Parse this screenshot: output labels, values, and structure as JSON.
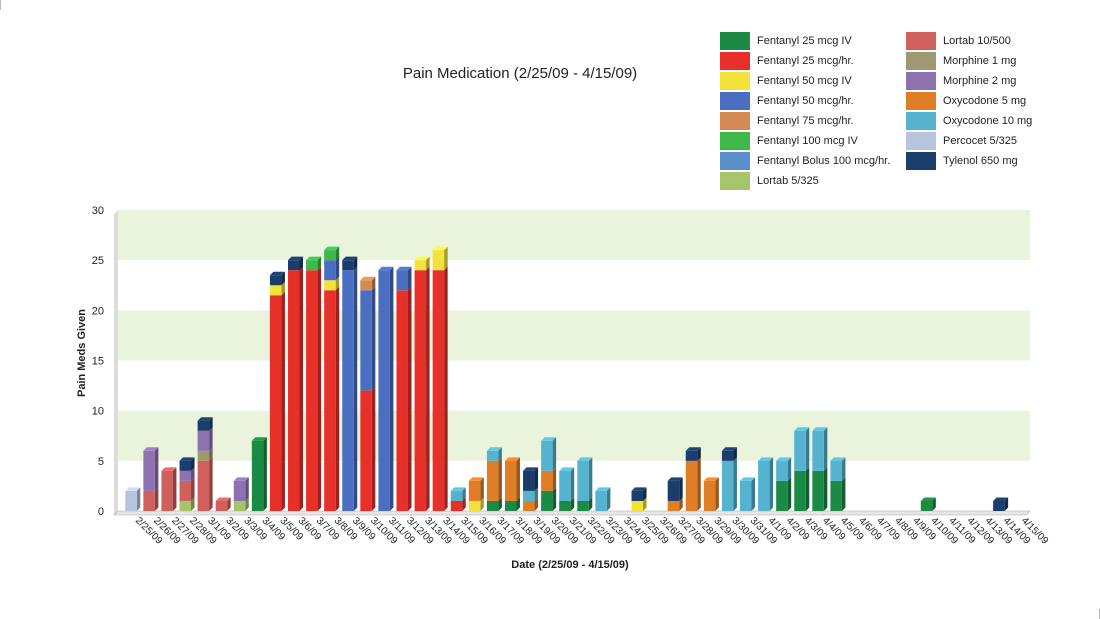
{
  "chart_data": {
    "type": "bar",
    "stacked": true,
    "title": "Pain Medication (2/25/09 - 4/15/09)",
    "xlabel": "Date (2/25/09 - 4/15/09)",
    "ylabel": "Pain Meds Given",
    "ylim": [
      0,
      30
    ],
    "yticks": [
      0,
      5,
      10,
      15,
      20,
      25,
      30
    ],
    "grid": "alternating bands",
    "legend_position": "top-right",
    "categories": [
      "2/25/09",
      "2/26/09",
      "2/27/09",
      "2/28/09",
      "3/1/09",
      "3/2/09",
      "3/3/09",
      "3/4/09",
      "3/5/09",
      "3/6/09",
      "3/7/09",
      "3/8/09",
      "3/9/09",
      "3/10/09",
      "3/11/09",
      "3/12/09",
      "3/13/09",
      "3/14/09",
      "3/15/09",
      "3/16/09",
      "3/17/09",
      "3/18/09",
      "3/19/09",
      "3/20/09",
      "3/21/09",
      "3/22/09",
      "3/23/09",
      "3/24/09",
      "3/25/09",
      "3/26/09",
      "3/27/09",
      "3/28/09",
      "3/29/09",
      "3/30/09",
      "3/31/09",
      "4/1/09",
      "4/2/09",
      "4/3/09",
      "4/4/09",
      "4/5/09",
      "4/6/09",
      "4/7/09",
      "4/8/09",
      "4/9/09",
      "4/10/09",
      "4/11/09",
      "4/12/09",
      "4/13/09",
      "4/14/09",
      "4/15/09"
    ],
    "series": [
      {
        "name": "Fentanyl 25 mcg IV",
        "color": "#1a8a45",
        "values": [
          0,
          0,
          0,
          0,
          0,
          0,
          0,
          7,
          0,
          0,
          0,
          0,
          0,
          0,
          0,
          0,
          0,
          0,
          0,
          0,
          1,
          1,
          0,
          2,
          1,
          1,
          0,
          0,
          0,
          0,
          0,
          0,
          0,
          0,
          0,
          0,
          3,
          4,
          4,
          3,
          0,
          0,
          0,
          0,
          1,
          0,
          0,
          0,
          0,
          0
        ]
      },
      {
        "name": "Fentanyl 25 mcg/hr.",
        "color": "#e8302a",
        "values": [
          0,
          0,
          0,
          0,
          0,
          0,
          0,
          0,
          21.5,
          24,
          24,
          22,
          0,
          12,
          0,
          22,
          24,
          24,
          1,
          0,
          0,
          0,
          0,
          0,
          0,
          0,
          0,
          0,
          0,
          0,
          0,
          0,
          0,
          0,
          0,
          0,
          0,
          0,
          0,
          0,
          0,
          0,
          0,
          0,
          0,
          0,
          0,
          0,
          0,
          0
        ]
      },
      {
        "name": "Fentanyl 50 mcg IV",
        "color": "#f2e23a",
        "values": [
          0,
          0,
          0,
          0,
          0,
          0,
          0,
          0,
          1,
          0,
          0,
          1,
          0,
          0,
          0,
          0,
          1,
          2,
          0,
          1,
          0,
          0,
          0,
          0,
          0,
          0,
          0,
          0,
          1,
          0,
          0,
          0,
          0,
          0,
          0,
          0,
          0,
          0,
          0,
          0,
          0,
          0,
          0,
          0,
          0,
          0,
          0,
          0,
          0,
          0
        ]
      },
      {
        "name": "Fentanyl 50 mcg/hr.",
        "color": "#4a6fc0",
        "values": [
          0,
          0,
          0,
          0,
          0,
          0,
          0,
          0,
          0,
          0,
          0,
          2,
          24,
          10,
          24,
          2,
          0,
          0,
          0,
          0,
          0,
          0,
          0,
          0,
          0,
          0,
          0,
          0,
          0,
          0,
          0,
          0,
          0,
          0,
          0,
          0,
          0,
          0,
          0,
          0,
          0,
          0,
          0,
          0,
          0,
          0,
          0,
          0,
          0,
          0
        ]
      },
      {
        "name": "Fentanyl 75 mcg/hr.",
        "color": "#d48a52",
        "values": [
          0,
          0,
          0,
          0,
          0,
          0,
          0,
          0,
          0,
          0,
          0,
          0,
          0,
          1,
          0,
          0,
          0,
          0,
          0,
          0,
          0,
          0,
          0,
          0,
          0,
          0,
          0,
          0,
          0,
          0,
          0,
          0,
          0,
          0,
          0,
          0,
          0,
          0,
          0,
          0,
          0,
          0,
          0,
          0,
          0,
          0,
          0,
          0,
          0,
          0
        ]
      },
      {
        "name": "Fentanyl 100 mcg IV",
        "color": "#3fb84a",
        "values": [
          0,
          0,
          0,
          0,
          0,
          0,
          0,
          0,
          0,
          0,
          1,
          1,
          0,
          0,
          0,
          0,
          0,
          0,
          0,
          0,
          0,
          0,
          0,
          0,
          0,
          0,
          0,
          0,
          0,
          0,
          0,
          0,
          0,
          0,
          0,
          0,
          0,
          0,
          0,
          0,
          0,
          0,
          0,
          0,
          0,
          0,
          0,
          0,
          0,
          0
        ]
      },
      {
        "name": "Fentanyl Bolus 100 mcg/hr.",
        "color": "#5a8ec8",
        "values": [
          0,
          0,
          0,
          0,
          0,
          0,
          0,
          0,
          0,
          0,
          0,
          0,
          0,
          0,
          0,
          0,
          0,
          0,
          0,
          0,
          0,
          0,
          0,
          0,
          0,
          0,
          0,
          0,
          0,
          0,
          0,
          0,
          0,
          0,
          0,
          0,
          0,
          0,
          0,
          0,
          0,
          0,
          0,
          0,
          0,
          0,
          0,
          0,
          0,
          0
        ]
      },
      {
        "name": "Lortab 5/325",
        "color": "#a8c46a",
        "values": [
          0,
          0,
          0,
          1,
          0,
          0,
          1,
          0,
          0,
          0,
          0,
          0,
          0,
          0,
          0,
          0,
          0,
          0,
          0,
          0,
          0,
          0,
          0,
          0,
          0,
          0,
          0,
          0,
          0,
          0,
          0,
          0,
          0,
          0,
          0,
          0,
          0,
          0,
          0,
          0,
          0,
          0,
          0,
          0,
          0,
          0,
          0,
          0,
          0,
          0
        ]
      },
      {
        "name": "Lortab 10/500",
        "color": "#cf605c",
        "values": [
          0,
          2,
          4,
          2,
          5,
          1,
          0,
          0,
          0,
          0,
          0,
          0,
          0,
          0,
          0,
          0,
          0,
          0,
          0,
          0,
          0,
          0,
          0,
          0,
          0,
          0,
          0,
          0,
          0,
          0,
          0,
          0,
          0,
          0,
          0,
          0,
          0,
          0,
          0,
          0,
          0,
          0,
          0,
          0,
          0,
          0,
          0,
          0,
          0,
          0
        ]
      },
      {
        "name": "Morphine 1 mg",
        "color": "#a09870",
        "values": [
          0,
          0,
          0,
          0,
          1,
          0,
          0,
          0,
          0,
          0,
          0,
          0,
          0,
          0,
          0,
          0,
          0,
          0,
          0,
          0,
          0,
          0,
          0,
          0,
          0,
          0,
          0,
          0,
          0,
          0,
          0,
          0,
          0,
          0,
          0,
          0,
          0,
          0,
          0,
          0,
          0,
          0,
          0,
          0,
          0,
          0,
          0,
          0,
          0,
          0
        ]
      },
      {
        "name": "Morphine 2 mg",
        "color": "#8e72b0",
        "values": [
          0,
          4,
          0,
          1,
          2,
          0,
          2,
          0,
          0,
          0,
          0,
          0,
          0,
          0,
          0,
          0,
          0,
          0,
          0,
          0,
          0,
          0,
          0,
          0,
          0,
          0,
          0,
          0,
          0,
          0,
          0,
          0,
          0,
          0,
          0,
          0,
          0,
          0,
          0,
          0,
          0,
          0,
          0,
          0,
          0,
          0,
          0,
          0,
          0,
          0
        ]
      },
      {
        "name": "Oxycodone 5 mg",
        "color": "#e07e28",
        "values": [
          0,
          0,
          0,
          0,
          0,
          0,
          0,
          0,
          0,
          0,
          0,
          0,
          0,
          0,
          0,
          0,
          0,
          0,
          0,
          2,
          4,
          4,
          1,
          2,
          0,
          0,
          0,
          0,
          0,
          0,
          1,
          5,
          3,
          0,
          0,
          0,
          0,
          0,
          0,
          0,
          0,
          0,
          0,
          0,
          0,
          0,
          0,
          0,
          0,
          0
        ]
      },
      {
        "name": "Oxycodone 10 mg",
        "color": "#55b3cf",
        "values": [
          0,
          0,
          0,
          0,
          0,
          0,
          0,
          0,
          0,
          0,
          0,
          0,
          0,
          0,
          0,
          0,
          0,
          0,
          1,
          0,
          1,
          0,
          1,
          3,
          3,
          4,
          2,
          0,
          0,
          0,
          0,
          0,
          0,
          5,
          3,
          5,
          2,
          4,
          4,
          2,
          0,
          0,
          0,
          0,
          0,
          0,
          0,
          0,
          0,
          0
        ]
      },
      {
        "name": "Percocet 5/325",
        "color": "#b7c4de",
        "values": [
          2,
          0,
          0,
          0,
          0,
          0,
          0,
          0,
          0,
          0,
          0,
          0,
          0,
          0,
          0,
          0,
          0,
          0,
          0,
          0,
          0,
          0,
          0,
          0,
          0,
          0,
          0,
          0,
          0,
          0,
          0,
          0,
          0,
          0,
          0,
          0,
          0,
          0,
          0,
          0,
          0,
          0,
          0,
          0,
          0,
          0,
          0,
          0,
          0,
          0
        ]
      },
      {
        "name": "Tylenol 650 mg",
        "color": "#1a3d6b",
        "values": [
          0,
          0,
          0,
          1,
          1,
          0,
          0,
          0,
          1,
          1,
          0,
          0,
          1,
          0,
          0,
          0,
          0,
          0,
          0,
          0,
          0,
          0,
          2,
          0,
          0,
          0,
          0,
          0,
          1,
          0,
          2,
          1,
          0,
          1,
          0,
          0,
          0,
          0,
          0,
          0,
          0,
          0,
          0,
          0,
          0,
          0,
          0,
          0,
          1,
          0
        ]
      }
    ]
  }
}
